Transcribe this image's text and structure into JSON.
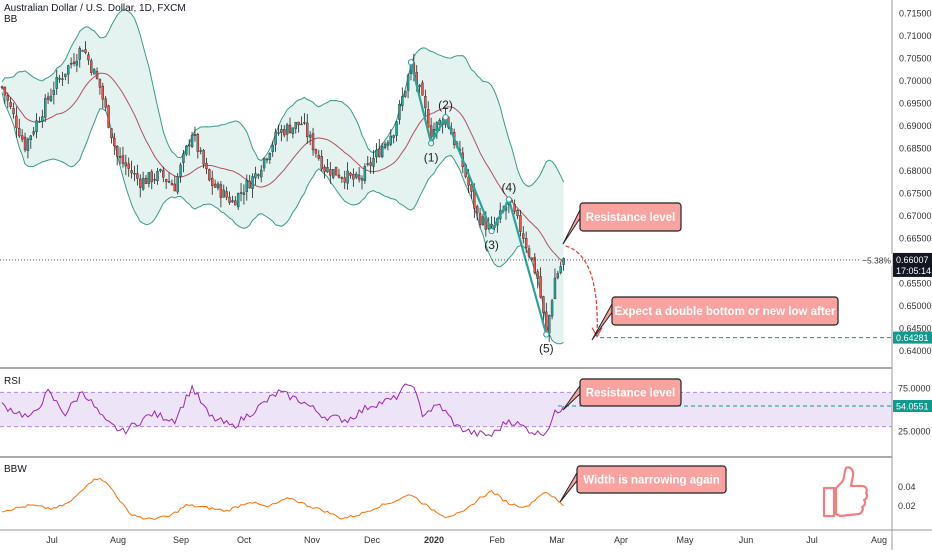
{
  "legend": {
    "symbol": "Australian Dollar / U.S. Dollar, 1D, FXCM",
    "main_indicator": "BB",
    "rsi": "RSI",
    "bbw": "BBW"
  },
  "colors": {
    "bull": "#26a69a",
    "bear": "#ef5350",
    "bb_fill": "#d6ede8",
    "bb_line": "#3a9a8c",
    "bb_mid": "#b05060",
    "rsi_line": "#9c27b0",
    "rsi_band": "#ede4f8",
    "bbw_line": "#ff6d00",
    "callout_bg": "#f8a3a0",
    "callout_border": "#222222",
    "wave": "#26a69a",
    "price_tag": "#131722",
    "target_tag": "#11998e"
  },
  "chart_data": [
    {
      "type": "candlestick",
      "title": "Australian Dollar / U.S. Dollar, 1D, FXCM",
      "indicator": "BB",
      "ylim": [
        0.6385,
        0.7165
      ],
      "yticks": [
        "0.71500",
        "0.71000",
        "0.70500",
        "0.70000",
        "0.69500",
        "0.69000",
        "0.68500",
        "0.68000",
        "0.67500",
        "0.67000",
        "0.66500",
        "0.66000",
        "0.65500",
        "0.65000",
        "0.64500",
        "0.64000"
      ],
      "x_labels": [
        "Jul",
        "Aug",
        "Sep",
        "Oct",
        "Nov",
        "Dec",
        "2020",
        "Feb",
        "Mar",
        "Apr",
        "May",
        "Jun",
        "Jul",
        "Aug"
      ],
      "anchors": [
        {
          "day": 0,
          "price": 0.6985
        },
        {
          "day": 8,
          "price": 0.6855
        },
        {
          "day": 18,
          "price": 0.6985
        },
        {
          "day": 28,
          "price": 0.7075
        },
        {
          "day": 34,
          "price": 0.6985
        },
        {
          "day": 40,
          "price": 0.683
        },
        {
          "day": 48,
          "price": 0.6775
        },
        {
          "day": 55,
          "price": 0.679
        },
        {
          "day": 60,
          "price": 0.6765
        },
        {
          "day": 66,
          "price": 0.6885
        },
        {
          "day": 72,
          "price": 0.6775
        },
        {
          "day": 80,
          "price": 0.673
        },
        {
          "day": 88,
          "price": 0.679
        },
        {
          "day": 96,
          "price": 0.6885
        },
        {
          "day": 104,
          "price": 0.6905
        },
        {
          "day": 112,
          "price": 0.6805
        },
        {
          "day": 118,
          "price": 0.679
        },
        {
          "day": 124,
          "price": 0.6775
        },
        {
          "day": 130,
          "price": 0.6835
        },
        {
          "day": 136,
          "price": 0.689
        },
        {
          "day": 142,
          "price": 0.703
        },
        {
          "day": 145,
          "price": 0.6975
        },
        {
          "day": 149,
          "price": 0.6885
        },
        {
          "day": 154,
          "price": 0.692
        },
        {
          "day": 160,
          "price": 0.681
        },
        {
          "day": 165,
          "price": 0.67
        },
        {
          "day": 170,
          "price": 0.6665
        },
        {
          "day": 176,
          "price": 0.673
        },
        {
          "day": 181,
          "price": 0.6655
        },
        {
          "day": 186,
          "price": 0.656
        },
        {
          "day": 189,
          "price": 0.6435
        },
        {
          "day": 192,
          "price": 0.656
        },
        {
          "day": 195,
          "price": 0.66
        }
      ],
      "current_price": "0.66007",
      "change_pct": "−5.38%",
      "countdown": "17:05:14",
      "target_price": "0.64281",
      "wave_points": [
        {
          "label": "(1)",
          "day": 149,
          "price": 0.686
        },
        {
          "label": "(2)",
          "day": 154,
          "price": 0.6918
        },
        {
          "label": "(3)",
          "day": 170,
          "price": 0.6665
        },
        {
          "label": "(4)",
          "day": 176,
          "price": 0.6735
        },
        {
          "label": "(5)",
          "day": 189,
          "price": 0.6435
        }
      ],
      "wave_start": {
        "day": 142,
        "price": 0.704
      },
      "annotations": [
        "Resistance level",
        "Expect a double bottom or new low after"
      ]
    },
    {
      "type": "line",
      "title": "RSI",
      "ylim": [
        0,
        100
      ],
      "yticks": [
        "75.0000",
        "25.0000"
      ],
      "band": [
        30,
        70
      ],
      "last_value": "54.0551",
      "anchors": [
        {
          "day": 0,
          "price": 55
        },
        {
          "day": 10,
          "price": 40
        },
        {
          "day": 16,
          "price": 70
        },
        {
          "day": 22,
          "price": 45
        },
        {
          "day": 28,
          "price": 72
        },
        {
          "day": 36,
          "price": 35
        },
        {
          "day": 42,
          "price": 24
        },
        {
          "day": 52,
          "price": 45
        },
        {
          "day": 60,
          "price": 38
        },
        {
          "day": 66,
          "price": 76
        },
        {
          "day": 72,
          "price": 42
        },
        {
          "day": 80,
          "price": 30
        },
        {
          "day": 90,
          "price": 55
        },
        {
          "day": 96,
          "price": 70
        },
        {
          "day": 104,
          "price": 60
        },
        {
          "day": 112,
          "price": 42
        },
        {
          "day": 120,
          "price": 38
        },
        {
          "day": 128,
          "price": 55
        },
        {
          "day": 136,
          "price": 62
        },
        {
          "day": 142,
          "price": 82
        },
        {
          "day": 146,
          "price": 45
        },
        {
          "day": 152,
          "price": 55
        },
        {
          "day": 158,
          "price": 30
        },
        {
          "day": 164,
          "price": 22
        },
        {
          "day": 170,
          "price": 20
        },
        {
          "day": 176,
          "price": 38
        },
        {
          "day": 182,
          "price": 28
        },
        {
          "day": 186,
          "price": 22
        },
        {
          "day": 189,
          "price": 25
        },
        {
          "day": 192,
          "price": 45
        },
        {
          "day": 195,
          "price": 54
        }
      ],
      "annotations": [
        "Resistance level"
      ]
    },
    {
      "type": "line",
      "title": "BBW",
      "ylim": [
        0.0,
        0.0535
      ],
      "yticks": [
        "0.04",
        "0.02"
      ],
      "anchors": [
        {
          "day": 0,
          "price": 0.014
        },
        {
          "day": 10,
          "price": 0.02
        },
        {
          "day": 18,
          "price": 0.016
        },
        {
          "day": 24,
          "price": 0.024
        },
        {
          "day": 30,
          "price": 0.044
        },
        {
          "day": 34,
          "price": 0.05
        },
        {
          "day": 38,
          "price": 0.038
        },
        {
          "day": 44,
          "price": 0.012
        },
        {
          "day": 50,
          "price": 0.005
        },
        {
          "day": 58,
          "price": 0.008
        },
        {
          "day": 64,
          "price": 0.02
        },
        {
          "day": 70,
          "price": 0.018
        },
        {
          "day": 78,
          "price": 0.014
        },
        {
          "day": 86,
          "price": 0.024
        },
        {
          "day": 92,
          "price": 0.018
        },
        {
          "day": 100,
          "price": 0.028
        },
        {
          "day": 106,
          "price": 0.02
        },
        {
          "day": 112,
          "price": 0.014
        },
        {
          "day": 118,
          "price": 0.006
        },
        {
          "day": 124,
          "price": 0.01
        },
        {
          "day": 130,
          "price": 0.018
        },
        {
          "day": 136,
          "price": 0.024
        },
        {
          "day": 142,
          "price": 0.032
        },
        {
          "day": 148,
          "price": 0.018
        },
        {
          "day": 154,
          "price": 0.008
        },
        {
          "day": 160,
          "price": 0.012
        },
        {
          "day": 166,
          "price": 0.028
        },
        {
          "day": 170,
          "price": 0.035
        },
        {
          "day": 176,
          "price": 0.022
        },
        {
          "day": 182,
          "price": 0.018
        },
        {
          "day": 188,
          "price": 0.034
        },
        {
          "day": 192,
          "price": 0.028
        },
        {
          "day": 195,
          "price": 0.02
        }
      ],
      "annotations": [
        "Width is narrowing again"
      ]
    }
  ]
}
